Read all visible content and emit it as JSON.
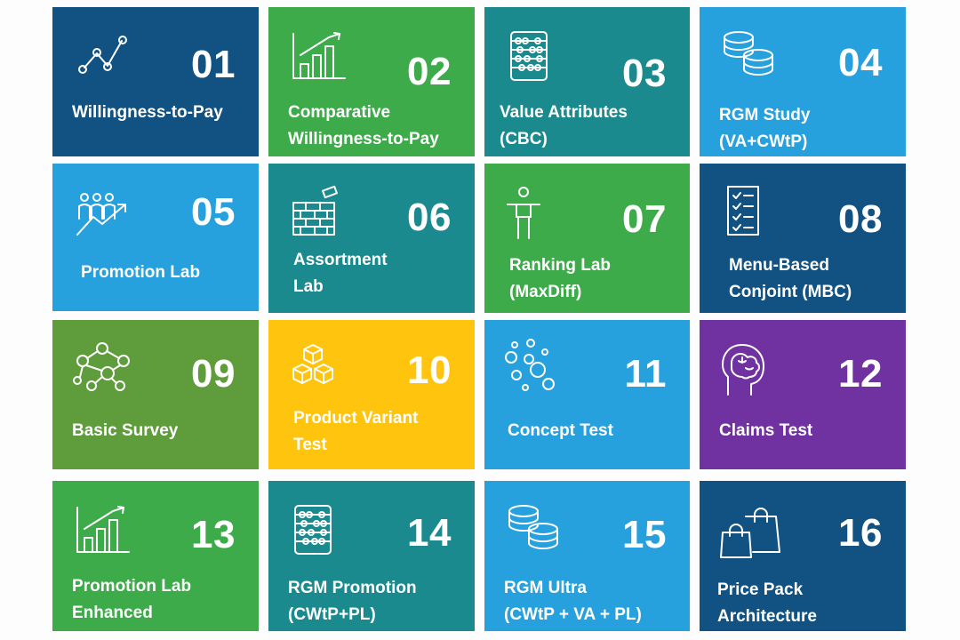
{
  "colors": {
    "navy": "#115283",
    "green": "#3dab49",
    "teal": "#1a8a8f",
    "sky": "#27a0de",
    "olive": "#5e9c3c",
    "yellow": "#fec40e",
    "purple": "#7032a0",
    "background": "#fdfdfd",
    "text": "#ffffff"
  },
  "tiles": [
    {
      "id": "willingness-to-pay",
      "number": "01",
      "label": "Willingness-to-Pay",
      "icon": "line-chart-icon",
      "color": "navy"
    },
    {
      "id": "comparative-willingness-to-pay",
      "number": "02",
      "label": "Comparative\nWillingness-to-Pay",
      "icon": "bar-chart-icon",
      "color": "green"
    },
    {
      "id": "value-attributes",
      "number": "03",
      "label": "Value Attributes\n(CBC)",
      "icon": "abacus-icon",
      "color": "teal"
    },
    {
      "id": "rgm-study",
      "number": "04",
      "label": "RGM Study\n(VA+CWtP)",
      "icon": "coins-icon",
      "color": "sky"
    },
    {
      "id": "promotion-lab",
      "number": "05",
      "label": "Promotion Lab",
      "icon": "people-growth-icon",
      "color": "sky"
    },
    {
      "id": "assortment-lab",
      "number": "06",
      "label": "Assortment\nLab",
      "icon": "brick-wall-icon",
      "color": "teal"
    },
    {
      "id": "ranking-lab",
      "number": "07",
      "label": "Ranking Lab\n(MaxDiff)",
      "icon": "person-icon",
      "color": "green"
    },
    {
      "id": "menu-based-conjoint",
      "number": "08",
      "label": "Menu-Based\nConjoint (MBC)",
      "icon": "checklist-icon",
      "color": "navy"
    },
    {
      "id": "basic-survey",
      "number": "09",
      "label": "Basic Survey",
      "icon": "network-icon",
      "color": "olive"
    },
    {
      "id": "product-variant-test",
      "number": "10",
      "label": "Product Variant\nTest",
      "icon": "boxes-icon",
      "color": "yellow"
    },
    {
      "id": "concept-test",
      "number": "11",
      "label": "Concept Test",
      "icon": "bubbles-icon",
      "color": "sky"
    },
    {
      "id": "claims-test",
      "number": "12",
      "label": "Claims Test",
      "icon": "brain-head-icon",
      "color": "purple"
    },
    {
      "id": "promotion-lab-enhanced",
      "number": "13",
      "label": "Promotion Lab\nEnhanced",
      "icon": "bar-chart-icon",
      "color": "green"
    },
    {
      "id": "rgm-promotion",
      "number": "14",
      "label": "RGM Promotion\n(CWtP+PL)",
      "icon": "abacus-icon",
      "color": "teal"
    },
    {
      "id": "rgm-ultra",
      "number": "15",
      "label": "RGM Ultra\n(CWtP + VA + PL)",
      "icon": "coins-icon",
      "color": "sky"
    },
    {
      "id": "price-pack-architecture",
      "number": "16",
      "label": "Price Pack\nArchitecture",
      "icon": "shopping-bags-icon",
      "color": "navy"
    }
  ]
}
